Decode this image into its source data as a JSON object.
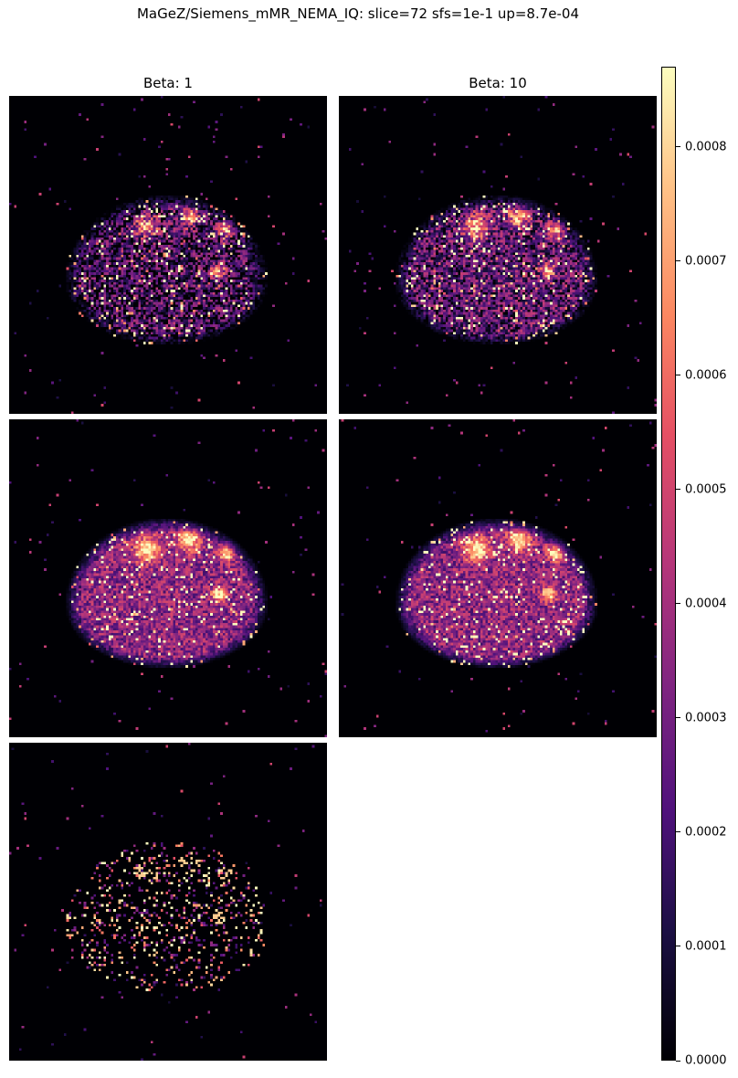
{
  "chart_data": {
    "type": "heatmap",
    "title": "MaGeZ/Siemens_mMR_NEMA_IQ: slice=72 sfs=1e-1 up=8.7e-04",
    "colormap": "magma",
    "vmin": 0.0,
    "vmax": 0.00087,
    "colorbar_ticks": [
      "0.0000",
      "0.0001",
      "0.0002",
      "0.0003",
      "0.0004",
      "0.0005",
      "0.0006",
      "0.0007",
      "0.0008"
    ],
    "colorbar_tick_values": [
      0.0,
      0.0001,
      0.0002,
      0.0003,
      0.0004,
      0.0005,
      0.0006,
      0.0007,
      0.0008
    ],
    "column_titles": [
      "Beta: 1",
      "Beta: 10"
    ],
    "panels": [
      {
        "id": "row1-beta1",
        "column": "Beta: 1",
        "row": 1
      },
      {
        "id": "row1-beta10",
        "column": "Beta: 10",
        "row": 1
      },
      {
        "id": "row2-beta1",
        "column": "Beta: 1",
        "row": 2
      },
      {
        "id": "row2-beta10",
        "column": "Beta: 10",
        "row": 2
      },
      {
        "id": "row3-beta1",
        "column": "Beta: 1",
        "row": 3
      }
    ]
  }
}
